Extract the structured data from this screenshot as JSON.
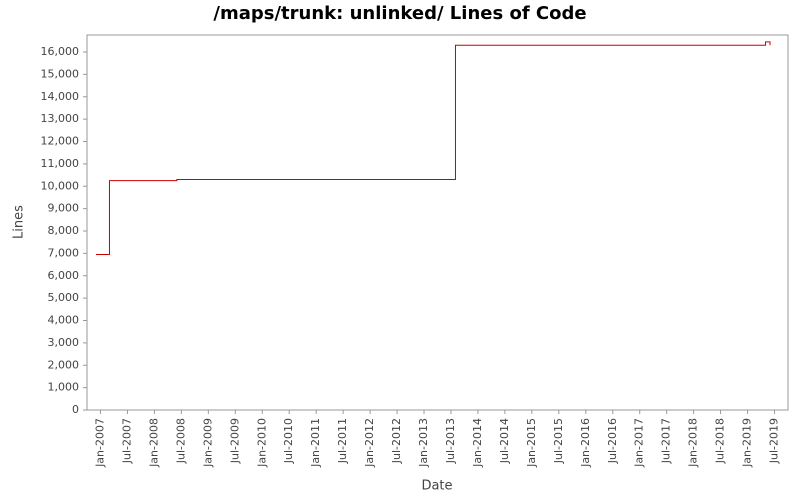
{
  "chart_data": {
    "type": "line",
    "step": true,
    "title": "/maps/trunk: unlinked/ Lines of Code",
    "x_label": "Date",
    "y_label": "Lines",
    "x": [
      "2006-12",
      "2007-03",
      "2008-06",
      "2013-08",
      "2019-05",
      "2019-06"
    ],
    "series": [
      {
        "name": "Lines",
        "color": "#cc0000",
        "values": [
          6950,
          10250,
          10300,
          16300,
          16450,
          16300
        ]
      }
    ],
    "xlim": [
      "2006-10",
      "2019-10"
    ],
    "xticks": [
      {
        "value": "2007-01",
        "label": "Jan-2007"
      },
      {
        "value": "2007-07",
        "label": "Jul-2007"
      },
      {
        "value": "2008-01",
        "label": "Jan-2008"
      },
      {
        "value": "2008-07",
        "label": "Jul-2008"
      },
      {
        "value": "2009-01",
        "label": "Jan-2009"
      },
      {
        "value": "2009-07",
        "label": "Jul-2009"
      },
      {
        "value": "2010-01",
        "label": "Jan-2010"
      },
      {
        "value": "2010-07",
        "label": "Jul-2010"
      },
      {
        "value": "2011-01",
        "label": "Jan-2011"
      },
      {
        "value": "2011-07",
        "label": "Jul-2011"
      },
      {
        "value": "2012-01",
        "label": "Jan-2012"
      },
      {
        "value": "2012-07",
        "label": "Jul-2012"
      },
      {
        "value": "2013-01",
        "label": "Jan-2013"
      },
      {
        "value": "2013-07",
        "label": "Jul-2013"
      },
      {
        "value": "2014-01",
        "label": "Jan-2014"
      },
      {
        "value": "2014-07",
        "label": "Jul-2014"
      },
      {
        "value": "2015-01",
        "label": "Jan-2015"
      },
      {
        "value": "2015-07",
        "label": "Jul-2015"
      },
      {
        "value": "2016-01",
        "label": "Jan-2016"
      },
      {
        "value": "2016-07",
        "label": "Jul-2016"
      },
      {
        "value": "2017-01",
        "label": "Jan-2017"
      },
      {
        "value": "2017-07",
        "label": "Jul-2017"
      },
      {
        "value": "2018-01",
        "label": "Jan-2018"
      },
      {
        "value": "2018-07",
        "label": "Jul-2018"
      },
      {
        "value": "2019-01",
        "label": "Jan-2019"
      },
      {
        "value": "2019-07",
        "label": "Jul-2019"
      }
    ],
    "ylim": [
      0,
      16760
    ],
    "yticks": [
      0,
      {
        "value": 1000,
        "label": "1,000"
      },
      {
        "value": 2000,
        "label": "2,000"
      },
      {
        "value": 3000,
        "label": "3,000"
      },
      {
        "value": 4000,
        "label": "4,000"
      },
      {
        "value": 5000,
        "label": "5,000"
      },
      {
        "value": 6000,
        "label": "6,000"
      },
      {
        "value": 7000,
        "label": "7,000"
      },
      {
        "value": 8000,
        "label": "8,000"
      },
      {
        "value": 9000,
        "label": "9,000"
      },
      {
        "value": 10000,
        "label": "10,000"
      },
      {
        "value": 11000,
        "label": "11,000"
      },
      {
        "value": 12000,
        "label": "12,000"
      },
      {
        "value": 13000,
        "label": "13,000"
      },
      {
        "value": 14000,
        "label": "14,000"
      },
      {
        "value": 15000,
        "label": "15,000"
      },
      {
        "value": 16000,
        "label": "16,000"
      }
    ],
    "grid": false
  }
}
